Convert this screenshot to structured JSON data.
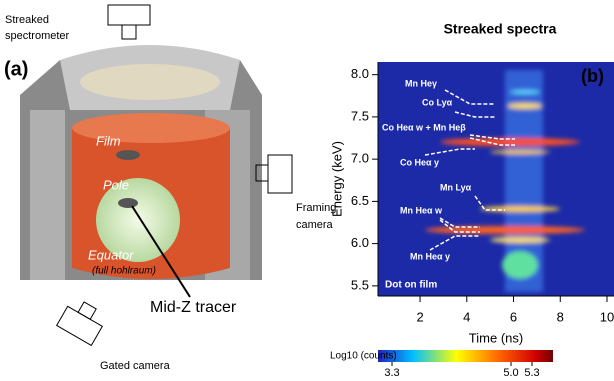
{
  "panel_a": {
    "tag": "(a)",
    "streaked_label": [
      "Streaked",
      "spectrometer"
    ],
    "framing_label": [
      "Framing",
      "camera"
    ],
    "gated_label": "Gated camera",
    "film": "Film",
    "pole": "Pole",
    "equator": "Equator",
    "equator_note": "(full hohlraum)",
    "tracer": "Mid-Z tracer"
  },
  "chart_data": {
    "type": "streak",
    "title": "Streaked spectra",
    "tag": "(b)",
    "xlabel": "Time (ns)",
    "ylabel": "Energy (keV)",
    "xlim": [
      0.2,
      10.3
    ],
    "xticks": [
      2,
      4,
      6,
      8,
      10
    ],
    "ylim": [
      5.38,
      8.15
    ],
    "yticks": [
      {
        "value": 5.5,
        "label": "5.5"
      },
      {
        "value": 6,
        "label": "6.0"
      },
      {
        "value": 6.5,
        "label": "6.5"
      },
      {
        "value": 7,
        "label": "7.0"
      },
      {
        "value": 7.5,
        "label": "7.5"
      },
      {
        "value": 8,
        "label": "8.0"
      }
    ],
    "line_labels": [
      "Mn Heγ",
      "Co Lyα",
      "Co Heα w + Mn Heβ",
      "Co Heα y",
      "Mn Lyα",
      "Mn Heα w",
      "Mn Heα y"
    ],
    "annotation": "Dot on film",
    "colorbar": {
      "label": "Log10 (counts)",
      "lim": [
        3.1,
        5.6
      ],
      "ticks": [
        3.3,
        {
          "value": 5,
          "label": "5.0"
        },
        5.3
      ]
    }
  }
}
